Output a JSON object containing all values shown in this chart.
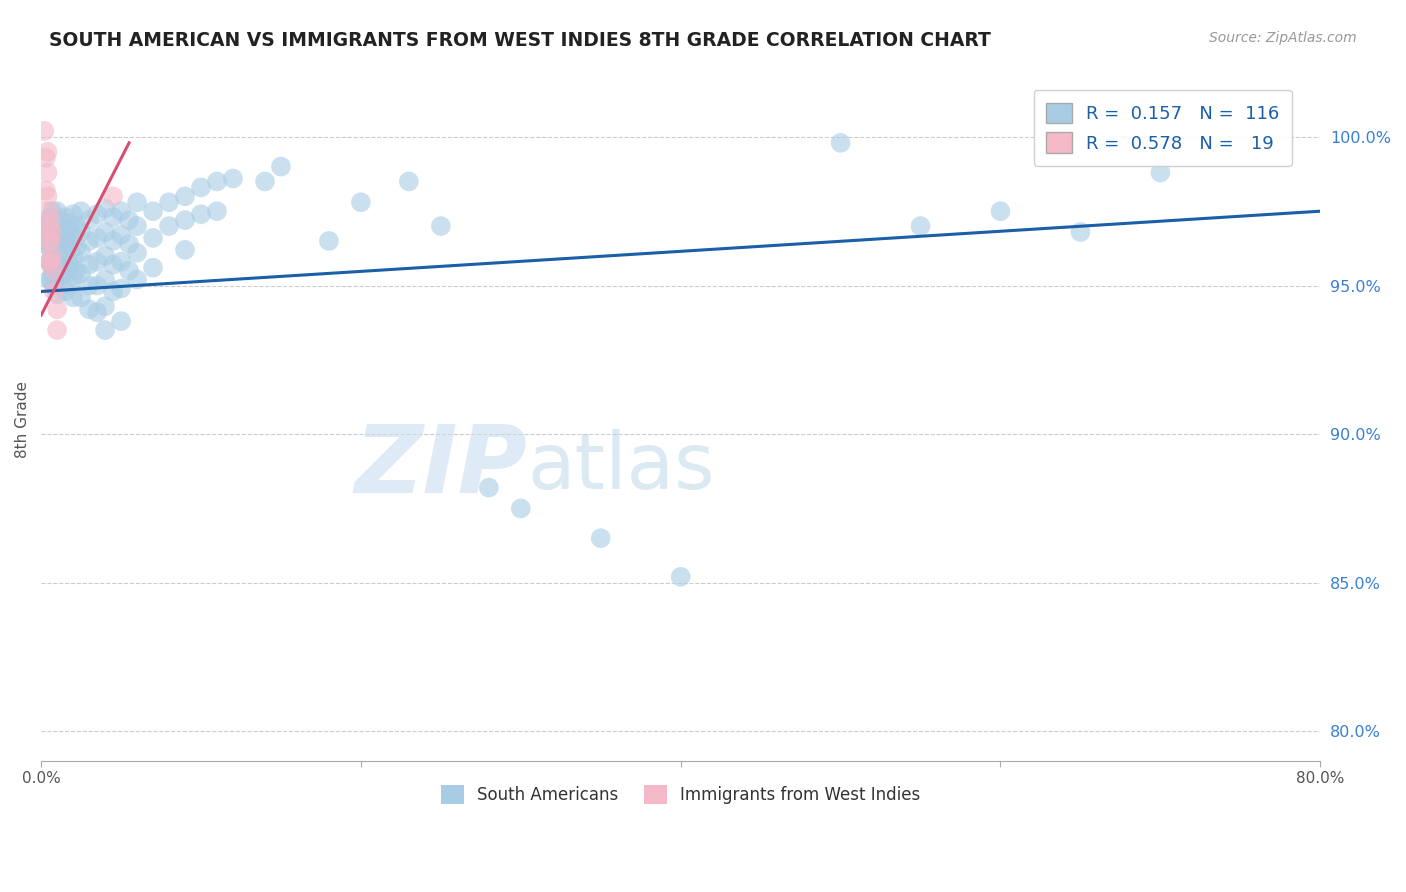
{
  "title": "SOUTH AMERICAN VS IMMIGRANTS FROM WEST INDIES 8TH GRADE CORRELATION CHART",
  "source": "Source: ZipAtlas.com",
  "ylabel": "8th Grade",
  "yticks": [
    80.0,
    85.0,
    90.0,
    95.0,
    100.0
  ],
  "xlim": [
    0.0,
    80.0
  ],
  "ylim": [
    79.0,
    102.0
  ],
  "legend_blue_r": "0.157",
  "legend_blue_n": "116",
  "legend_pink_r": "0.578",
  "legend_pink_n": "19",
  "legend_blue_label": "South Americans",
  "legend_pink_label": "Immigrants from West Indies",
  "blue_color": "#a8cce4",
  "pink_color": "#f4b8c8",
  "blue_line_color": "#1a5fa8",
  "pink_line_color": "#d94f72",
  "watermark_zip": "ZIP",
  "watermark_atlas": "atlas",
  "blue_line_x0": 0.0,
  "blue_line_y0": 94.8,
  "blue_line_x1": 80.0,
  "blue_line_y1": 97.5,
  "pink_line_x0": 0.0,
  "pink_line_y0": 94.0,
  "pink_line_x1": 5.5,
  "pink_line_y1": 99.8,
  "blue_scatter": [
    [
      0.3,
      96.8
    ],
    [
      0.4,
      97.2
    ],
    [
      0.4,
      96.5
    ],
    [
      0.5,
      97.0
    ],
    [
      0.5,
      96.3
    ],
    [
      0.5,
      95.8
    ],
    [
      0.5,
      95.2
    ],
    [
      0.6,
      97.3
    ],
    [
      0.6,
      96.8
    ],
    [
      0.6,
      96.2
    ],
    [
      0.6,
      95.7
    ],
    [
      0.6,
      95.2
    ],
    [
      0.7,
      97.5
    ],
    [
      0.7,
      97.0
    ],
    [
      0.7,
      96.5
    ],
    [
      0.7,
      95.9
    ],
    [
      0.7,
      95.4
    ],
    [
      0.8,
      97.2
    ],
    [
      0.8,
      96.6
    ],
    [
      0.8,
      96.0
    ],
    [
      0.8,
      95.5
    ],
    [
      0.8,
      95.0
    ],
    [
      0.9,
      97.0
    ],
    [
      0.9,
      96.4
    ],
    [
      0.9,
      95.8
    ],
    [
      0.9,
      95.3
    ],
    [
      1.0,
      97.5
    ],
    [
      1.0,
      96.9
    ],
    [
      1.0,
      96.3
    ],
    [
      1.0,
      95.8
    ],
    [
      1.0,
      95.2
    ],
    [
      1.0,
      94.7
    ],
    [
      1.2,
      97.2
    ],
    [
      1.2,
      96.5
    ],
    [
      1.2,
      95.9
    ],
    [
      1.2,
      95.3
    ],
    [
      1.3,
      96.8
    ],
    [
      1.3,
      96.2
    ],
    [
      1.5,
      97.3
    ],
    [
      1.5,
      96.7
    ],
    [
      1.5,
      96.1
    ],
    [
      1.5,
      95.4
    ],
    [
      1.5,
      94.8
    ],
    [
      1.7,
      96.9
    ],
    [
      1.7,
      96.3
    ],
    [
      1.7,
      95.6
    ],
    [
      1.8,
      97.1
    ],
    [
      1.8,
      96.4
    ],
    [
      1.8,
      95.7
    ],
    [
      1.8,
      95.0
    ],
    [
      2.0,
      97.4
    ],
    [
      2.0,
      96.7
    ],
    [
      2.0,
      96.0
    ],
    [
      2.0,
      95.3
    ],
    [
      2.0,
      94.6
    ],
    [
      2.2,
      97.0
    ],
    [
      2.2,
      96.3
    ],
    [
      2.2,
      95.5
    ],
    [
      2.5,
      97.5
    ],
    [
      2.5,
      96.8
    ],
    [
      2.5,
      96.1
    ],
    [
      2.5,
      95.4
    ],
    [
      2.5,
      94.6
    ],
    [
      3.0,
      97.2
    ],
    [
      3.0,
      96.5
    ],
    [
      3.0,
      95.7
    ],
    [
      3.0,
      95.0
    ],
    [
      3.0,
      94.2
    ],
    [
      3.5,
      97.4
    ],
    [
      3.5,
      96.6
    ],
    [
      3.5,
      95.8
    ],
    [
      3.5,
      95.0
    ],
    [
      3.5,
      94.1
    ],
    [
      4.0,
      97.6
    ],
    [
      4.0,
      96.8
    ],
    [
      4.0,
      96.0
    ],
    [
      4.0,
      95.2
    ],
    [
      4.0,
      94.3
    ],
    [
      4.0,
      93.5
    ],
    [
      4.5,
      97.3
    ],
    [
      4.5,
      96.5
    ],
    [
      4.5,
      95.7
    ],
    [
      4.5,
      94.8
    ],
    [
      5.0,
      97.5
    ],
    [
      5.0,
      96.7
    ],
    [
      5.0,
      95.8
    ],
    [
      5.0,
      94.9
    ],
    [
      5.0,
      93.8
    ],
    [
      5.5,
      97.2
    ],
    [
      5.5,
      96.4
    ],
    [
      5.5,
      95.5
    ],
    [
      6.0,
      97.8
    ],
    [
      6.0,
      97.0
    ],
    [
      6.0,
      96.1
    ],
    [
      6.0,
      95.2
    ],
    [
      7.0,
      97.5
    ],
    [
      7.0,
      96.6
    ],
    [
      7.0,
      95.6
    ],
    [
      8.0,
      97.8
    ],
    [
      8.0,
      97.0
    ],
    [
      9.0,
      98.0
    ],
    [
      9.0,
      97.2
    ],
    [
      9.0,
      96.2
    ],
    [
      10.0,
      98.3
    ],
    [
      10.0,
      97.4
    ],
    [
      11.0,
      98.5
    ],
    [
      11.0,
      97.5
    ],
    [
      12.0,
      98.6
    ],
    [
      14.0,
      98.5
    ],
    [
      15.0,
      99.0
    ],
    [
      18.0,
      96.5
    ],
    [
      20.0,
      97.8
    ],
    [
      23.0,
      98.5
    ],
    [
      25.0,
      97.0
    ],
    [
      28.0,
      88.2
    ],
    [
      30.0,
      87.5
    ],
    [
      35.0,
      86.5
    ],
    [
      40.0,
      85.2
    ],
    [
      50.0,
      99.8
    ],
    [
      55.0,
      97.0
    ],
    [
      60.0,
      97.5
    ],
    [
      65.0,
      96.8
    ],
    [
      70.0,
      98.8
    ]
  ],
  "pink_scatter": [
    [
      0.2,
      100.2
    ],
    [
      0.3,
      99.3
    ],
    [
      0.3,
      98.2
    ],
    [
      0.4,
      99.5
    ],
    [
      0.4,
      98.8
    ],
    [
      0.4,
      98.0
    ],
    [
      0.5,
      97.5
    ],
    [
      0.5,
      97.0
    ],
    [
      0.5,
      96.5
    ],
    [
      0.5,
      95.8
    ],
    [
      0.6,
      97.2
    ],
    [
      0.6,
      96.5
    ],
    [
      0.6,
      95.8
    ],
    [
      0.7,
      96.8
    ],
    [
      0.7,
      96.0
    ],
    [
      0.8,
      95.5
    ],
    [
      0.8,
      94.8
    ],
    [
      1.0,
      94.2
    ],
    [
      1.0,
      93.5
    ],
    [
      4.5,
      98.0
    ]
  ]
}
